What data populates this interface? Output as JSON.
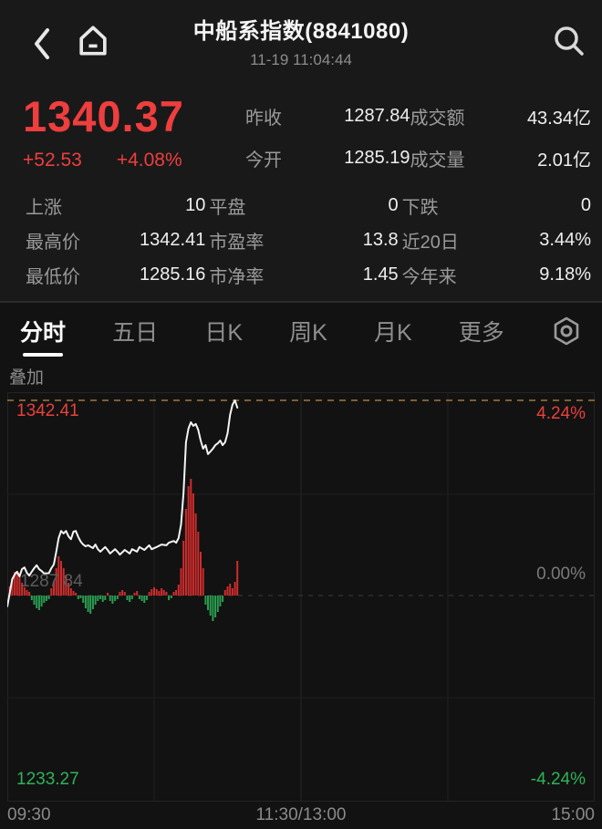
{
  "header": {
    "title": "中船系指数(8841080)",
    "datetime": "11-19 11:04:44"
  },
  "quote": {
    "price": "1340.37",
    "change": "+52.53",
    "change_pct": "+4.08%"
  },
  "overview": {
    "rows": [
      {
        "l1": "昨收",
        "v1": "1287.84",
        "l2": "成交额",
        "v2": "43.34亿"
      },
      {
        "l1": "今开",
        "v1": "1285.19",
        "l2": "成交量",
        "v2": "2.01亿"
      }
    ]
  },
  "stats": {
    "rows": [
      [
        {
          "label": "上涨",
          "value": "10"
        },
        {
          "label": "平盘",
          "value": "0"
        },
        {
          "label": "下跌",
          "value": "0"
        }
      ],
      [
        {
          "label": "最高价",
          "value": "1342.41"
        },
        {
          "label": "市盈率",
          "value": "13.8"
        },
        {
          "label": "近20日",
          "value": "3.44%"
        }
      ],
      [
        {
          "label": "最低价",
          "value": "1285.16"
        },
        {
          "label": "市净率",
          "value": "1.45"
        },
        {
          "label": "今年来",
          "value": "9.18%"
        }
      ]
    ]
  },
  "tabs": {
    "items": [
      "分时",
      "五日",
      "日K",
      "周K",
      "月K",
      "更多"
    ],
    "active_index": 0
  },
  "overlay_label": "叠加",
  "chart_data": {
    "type": "line",
    "title": "分时 intraday line with per-minute up/down volume bars",
    "prev_close": 1287.84,
    "high": 1342.41,
    "range_low": 1233.27,
    "range_pct": 4.24,
    "total_minutes": 240,
    "current_minute": 94,
    "x_ticks": [
      "09:30",
      "11:30/13:00",
      "15:00"
    ],
    "left_labels": {
      "high": "1342.41",
      "mid": "1287.84",
      "low": "1233.27"
    },
    "right_labels": {
      "high": "4.24%",
      "mid": "0.00%",
      "low": "-4.24%"
    },
    "colors": {
      "up": "#cf2c2c",
      "down": "#2a9d50",
      "line": "#f4f4f4",
      "high_line": "#a3783c"
    },
    "price_points": [
      [
        0,
        1284.8
      ],
      [
        1,
        1288.6
      ],
      [
        2,
        1292.4
      ],
      [
        3,
        1293.7
      ],
      [
        4,
        1294.5
      ],
      [
        5,
        1293.2
      ],
      [
        6,
        1295.2
      ],
      [
        7,
        1295.7
      ],
      [
        8,
        1294.2
      ],
      [
        9,
        1293.4
      ],
      [
        10,
        1294.5
      ],
      [
        11,
        1295.5
      ],
      [
        12,
        1296.3
      ],
      [
        13,
        1295.2
      ],
      [
        14,
        1294.7
      ],
      [
        15,
        1294.0
      ],
      [
        17,
        1294.1
      ],
      [
        18,
        1295.5
      ],
      [
        19,
        1296.5
      ],
      [
        20,
        1300.1
      ],
      [
        21,
        1303.9
      ],
      [
        22,
        1305.9
      ],
      [
        23,
        1305.2
      ],
      [
        24,
        1305.9
      ],
      [
        25,
        1304.4
      ],
      [
        26,
        1303.6
      ],
      [
        27,
        1305.7
      ],
      [
        28,
        1305.9
      ],
      [
        29,
        1304.2
      ],
      [
        30,
        1302.9
      ],
      [
        31,
        1302.1
      ],
      [
        32,
        1301.6
      ],
      [
        33,
        1301.9
      ],
      [
        35,
        1301.1
      ],
      [
        36,
        1302.1
      ],
      [
        37,
        1300.8
      ],
      [
        38,
        1300.1
      ],
      [
        40,
        1301.4
      ],
      [
        41,
        1300.6
      ],
      [
        42,
        1299.6
      ],
      [
        44,
        1300.8
      ],
      [
        45,
        1300.1
      ],
      [
        46,
        1299.3
      ],
      [
        48,
        1300.6
      ],
      [
        50,
        1299.6
      ],
      [
        51,
        1300.8
      ],
      [
        53,
        1300.1
      ],
      [
        54,
        1301.4
      ],
      [
        56,
        1300.6
      ],
      [
        58,
        1301.9
      ],
      [
        59,
        1300.8
      ],
      [
        61,
        1301.4
      ],
      [
        63,
        1302.1
      ],
      [
        65,
        1301.9
      ],
      [
        66,
        1302.6
      ],
      [
        68,
        1303.1
      ],
      [
        69,
        1302.6
      ],
      [
        70,
        1303.9
      ],
      [
        71,
        1307.7
      ],
      [
        72,
        1316.5
      ],
      [
        73,
        1330.7
      ],
      [
        74,
        1334.5
      ],
      [
        75,
        1336.3
      ],
      [
        76,
        1335.3
      ],
      [
        77,
        1335.8
      ],
      [
        78,
        1334.2
      ],
      [
        79,
        1331.2
      ],
      [
        80,
        1328.9
      ],
      [
        81,
        1329.9
      ],
      [
        82,
        1327.4
      ],
      [
        83,
        1328.1
      ],
      [
        84,
        1328.9
      ],
      [
        85,
        1329.9
      ],
      [
        86,
        1330.4
      ],
      [
        87,
        1331.2
      ],
      [
        88,
        1329.9
      ],
      [
        89,
        1330.7
      ],
      [
        90,
        1333.2
      ],
      [
        91,
        1338.3
      ],
      [
        92,
        1341.2
      ],
      [
        93,
        1342.41
      ],
      [
        94,
        1340.37
      ]
    ],
    "volume_bars": [
      [
        1,
        10
      ],
      [
        2,
        18
      ],
      [
        3,
        26
      ],
      [
        4,
        24
      ],
      [
        5,
        20
      ],
      [
        6,
        14
      ],
      [
        7,
        9
      ],
      [
        8,
        6
      ],
      [
        9,
        4
      ],
      [
        10,
        -5
      ],
      [
        11,
        -10
      ],
      [
        12,
        -14
      ],
      [
        13,
        -16
      ],
      [
        14,
        -12
      ],
      [
        15,
        -8
      ],
      [
        16,
        -6
      ],
      [
        17,
        -4
      ],
      [
        18,
        8
      ],
      [
        19,
        16
      ],
      [
        20,
        30
      ],
      [
        21,
        43
      ],
      [
        22,
        38
      ],
      [
        23,
        30
      ],
      [
        24,
        22
      ],
      [
        25,
        14
      ],
      [
        26,
        8
      ],
      [
        27,
        5
      ],
      [
        28,
        3
      ],
      [
        29,
        -4
      ],
      [
        30,
        -3
      ],
      [
        31,
        -8
      ],
      [
        32,
        -14
      ],
      [
        33,
        -18
      ],
      [
        34,
        -20
      ],
      [
        35,
        -15
      ],
      [
        36,
        -10
      ],
      [
        37,
        -6
      ],
      [
        38,
        -4
      ],
      [
        39,
        -7
      ],
      [
        40,
        -5
      ],
      [
        41,
        3
      ],
      [
        42,
        -6
      ],
      [
        43,
        -9
      ],
      [
        44,
        -6
      ],
      [
        45,
        -4
      ],
      [
        46,
        4
      ],
      [
        47,
        6
      ],
      [
        48,
        4
      ],
      [
        49,
        -5
      ],
      [
        50,
        -7
      ],
      [
        51,
        -4
      ],
      [
        52,
        3
      ],
      [
        53,
        5
      ],
      [
        54,
        -4
      ],
      [
        55,
        -6
      ],
      [
        56,
        -8
      ],
      [
        57,
        -5
      ],
      [
        58,
        4
      ],
      [
        59,
        7
      ],
      [
        60,
        9
      ],
      [
        61,
        7
      ],
      [
        62,
        5
      ],
      [
        63,
        8
      ],
      [
        64,
        6
      ],
      [
        65,
        4
      ],
      [
        66,
        -5
      ],
      [
        67,
        -3
      ],
      [
        68,
        4
      ],
      [
        69,
        6
      ],
      [
        70,
        12
      ],
      [
        71,
        30
      ],
      [
        72,
        60
      ],
      [
        73,
        95
      ],
      [
        74,
        120
      ],
      [
        75,
        128
      ],
      [
        76,
        112
      ],
      [
        77,
        90
      ],
      [
        78,
        70
      ],
      [
        79,
        48
      ],
      [
        80,
        30
      ],
      [
        81,
        -10
      ],
      [
        82,
        -16
      ],
      [
        83,
        -22
      ],
      [
        84,
        -28
      ],
      [
        85,
        -24
      ],
      [
        86,
        -18
      ],
      [
        87,
        -12
      ],
      [
        88,
        -7
      ],
      [
        89,
        6
      ],
      [
        90,
        10
      ],
      [
        91,
        13
      ],
      [
        92,
        8
      ],
      [
        93,
        15
      ],
      [
        94,
        38
      ]
    ]
  }
}
